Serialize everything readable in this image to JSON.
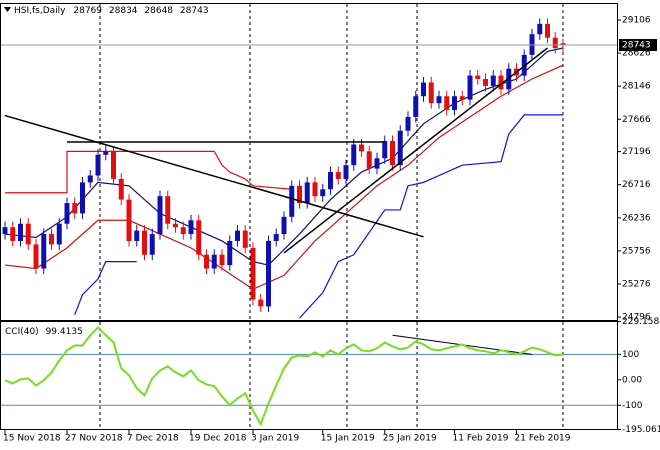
{
  "chart_data": [
    {
      "type": "candlestick",
      "title": "HSI,fs,Daily",
      "categories": [
        "15 Nov 2018",
        null,
        null,
        null,
        null,
        null,
        null,
        null,
        "27 Nov 2018",
        null,
        null,
        null,
        null,
        null,
        null,
        null,
        "7 Dec 2018",
        null,
        null,
        null,
        null,
        null,
        null,
        null,
        "19 Dec 2018",
        null,
        null,
        null,
        null,
        null,
        null,
        null,
        "3 Jan 2019",
        null,
        null,
        null,
        null,
        null,
        null,
        null,
        null,
        "15 Jan 2019",
        null,
        null,
        null,
        null,
        null,
        null,
        null,
        "25 Jan 2019",
        null,
        null,
        null,
        null,
        null,
        null,
        null,
        null,
        "11 Feb 2019",
        null,
        null,
        null,
        null,
        null,
        null,
        null,
        "21 Feb 2019",
        null,
        null,
        null,
        null,
        null,
        null
      ],
      "open": [
        26000,
        26100,
        25900,
        26150,
        25850,
        25500,
        26000,
        25850,
        26150,
        26450,
        26300,
        26750,
        26850,
        27150,
        27200,
        26800,
        26500,
        25900,
        26050,
        25700,
        26000,
        26550,
        26150,
        26100,
        26000,
        26200,
        25700,
        25500,
        25700,
        25550,
        25900,
        26050,
        25800,
        25050,
        24950,
        25900,
        26000,
        26250,
        26700,
        26450,
        26750,
        26550,
        26650,
        26900,
        26800,
        27000,
        27300,
        27200,
        26950,
        27100,
        27350,
        27000,
        27500,
        27700,
        28000,
        28200,
        27900,
        28000,
        27800,
        28000,
        27950,
        28300,
        28250,
        28150,
        28300,
        28100,
        28400,
        28300,
        28600,
        28900,
        29050,
        28850,
        28769
      ],
      "high": [
        26180,
        26180,
        26230,
        26230,
        25930,
        26080,
        26080,
        26230,
        26530,
        26530,
        26830,
        26930,
        27230,
        27280,
        27280,
        26880,
        26580,
        26130,
        26130,
        26080,
        26630,
        26630,
        26230,
        26180,
        26280,
        26280,
        25780,
        25780,
        25780,
        25980,
        26130,
        26130,
        25880,
        25130,
        25980,
        26080,
        26330,
        26780,
        26780,
        26830,
        26830,
        26730,
        26980,
        26980,
        27080,
        27380,
        27380,
        27280,
        27180,
        27430,
        27430,
        27580,
        27780,
        28080,
        28280,
        28280,
        28080,
        28080,
        28080,
        28080,
        28380,
        28380,
        28330,
        28380,
        28380,
        28480,
        28480,
        28680,
        28980,
        29130,
        29130,
        28930,
        28834
      ],
      "low": [
        25920,
        25820,
        25820,
        25770,
        25420,
        25420,
        25770,
        25770,
        26070,
        26220,
        26220,
        26670,
        26770,
        27070,
        26720,
        26420,
        25820,
        25820,
        25620,
        25620,
        25920,
        26070,
        26020,
        25920,
        25920,
        25620,
        25420,
        25420,
        25470,
        25470,
        25820,
        25720,
        24970,
        24870,
        24870,
        25820,
        25920,
        26170,
        26370,
        26370,
        26470,
        26470,
        26570,
        26720,
        26720,
        26920,
        27120,
        26870,
        26870,
        27020,
        26920,
        26920,
        27420,
        27620,
        27920,
        27820,
        27820,
        27720,
        27720,
        27870,
        27870,
        28170,
        28070,
        28070,
        28020,
        28020,
        28220,
        28220,
        28520,
        28820,
        28770,
        28620,
        28648
      ],
      "close": [
        26100,
        25900,
        26150,
        25850,
        25500,
        26000,
        25850,
        26150,
        26450,
        26300,
        26750,
        26850,
        27150,
        27200,
        26800,
        26500,
        25900,
        26050,
        25700,
        26000,
        26550,
        26150,
        26100,
        26000,
        26200,
        25700,
        25500,
        25700,
        25550,
        25900,
        26050,
        25800,
        25050,
        24950,
        25900,
        26000,
        26250,
        26700,
        26450,
        26750,
        26550,
        26650,
        26900,
        26800,
        27000,
        27300,
        27200,
        26950,
        27100,
        27350,
        27000,
        27500,
        27700,
        28000,
        28200,
        27900,
        28000,
        27800,
        28000,
        27950,
        28300,
        28250,
        28150,
        28300,
        28100,
        28400,
        28300,
        28600,
        28900,
        29050,
        28850,
        28700,
        28743
      ],
      "up_color": "#1010b0",
      "down_color": "#e01010",
      "ylim": [
        24753,
        29353
      ],
      "yticks": [
        29106,
        28626,
        28146,
        27666,
        27196,
        26716,
        26236,
        25756,
        25276,
        24796
      ],
      "lines": [
        {
          "color": "#101070",
          "x": [
            0,
            4,
            8,
            12,
            16,
            20,
            24,
            28,
            32,
            34,
            38,
            42,
            46,
            50,
            54,
            58,
            62,
            66,
            70,
            72
          ],
          "values": [
            26000,
            25950,
            26250,
            26750,
            26700,
            26300,
            26100,
            25900,
            25600,
            25550,
            26000,
            26500,
            26900,
            27100,
            27600,
            27900,
            28100,
            28250,
            28650,
            28700
          ]
        },
        {
          "color": "#d01010",
          "x": [
            0,
            4,
            8,
            12,
            16,
            20,
            24,
            28,
            32,
            36,
            40,
            44,
            48,
            52,
            56,
            60,
            64,
            68,
            72
          ],
          "values": [
            25550,
            25500,
            25800,
            26200,
            26200,
            26000,
            25800,
            25500,
            25200,
            25400,
            25900,
            26300,
            26700,
            27000,
            27400,
            27700,
            28000,
            28250,
            28450
          ]
        },
        {
          "color": "#e01010",
          "x": [
            0,
            8,
            8,
            27,
            28,
            29,
            31,
            32,
            37
          ],
          "values": [
            26600,
            26600,
            27200,
            27200,
            27000,
            26900,
            26800,
            26700,
            26650
          ]
        },
        {
          "color": "#1010e0",
          "x": [
            9,
            10,
            12,
            13,
            17,
            null,
            38,
            41,
            43,
            45,
            49,
            51,
            52,
            54,
            59,
            64,
            65,
            67,
            72
          ],
          "values": [
            24830,
            25120,
            25350,
            25600,
            25600,
            null,
            24780,
            25150,
            25600,
            25700,
            26350,
            26350,
            26700,
            26750,
            27000,
            27050,
            27450,
            27730,
            27730
          ]
        }
      ],
      "trendlines": [
        {
          "color": "#000000",
          "x": [
            0,
            54
          ],
          "values": [
            27720,
            25960
          ]
        },
        {
          "color": "#000000",
          "x": [
            8,
            49
          ],
          "values": [
            27336,
            27336
          ]
        },
        {
          "color": "#000000",
          "x": [
            36,
            70
          ],
          "values": [
            25726,
            28700
          ]
        }
      ]
    },
    {
      "type": "line",
      "title": "CCI(40)",
      "color": "#77dd22",
      "values": [
        -2,
        -14,
        2,
        6,
        -22,
        -2,
        29,
        76,
        116,
        135,
        135,
        175,
        206,
        175,
        147,
        45,
        18,
        -33,
        -61,
        6,
        37,
        53,
        29,
        14,
        37,
        -2,
        -18,
        -25,
        -65,
        -100,
        -73,
        -53,
        -120,
        -175,
        -92,
        -22,
        45,
        88,
        96,
        92,
        108,
        92,
        116,
        100,
        124,
        139,
        116,
        112,
        124,
        147,
        131,
        120,
        127,
        151,
        139,
        120,
        116,
        124,
        131,
        139,
        124,
        116,
        112,
        104,
        116,
        108,
        100,
        112,
        127,
        120,
        108,
        96,
        99.4135
      ],
      "ylim": [
        -195.0612,
        229.1588
      ],
      "yticks": [
        229.1588,
        100,
        {
          "value": 0,
          "label": "0.00"
        },
        -100,
        -195.0612
      ],
      "trendlines": [
        {
          "color": "#000000",
          "x": [
            50,
            68
          ],
          "values": [
            175,
            100
          ]
        }
      ]
    }
  ]
}
